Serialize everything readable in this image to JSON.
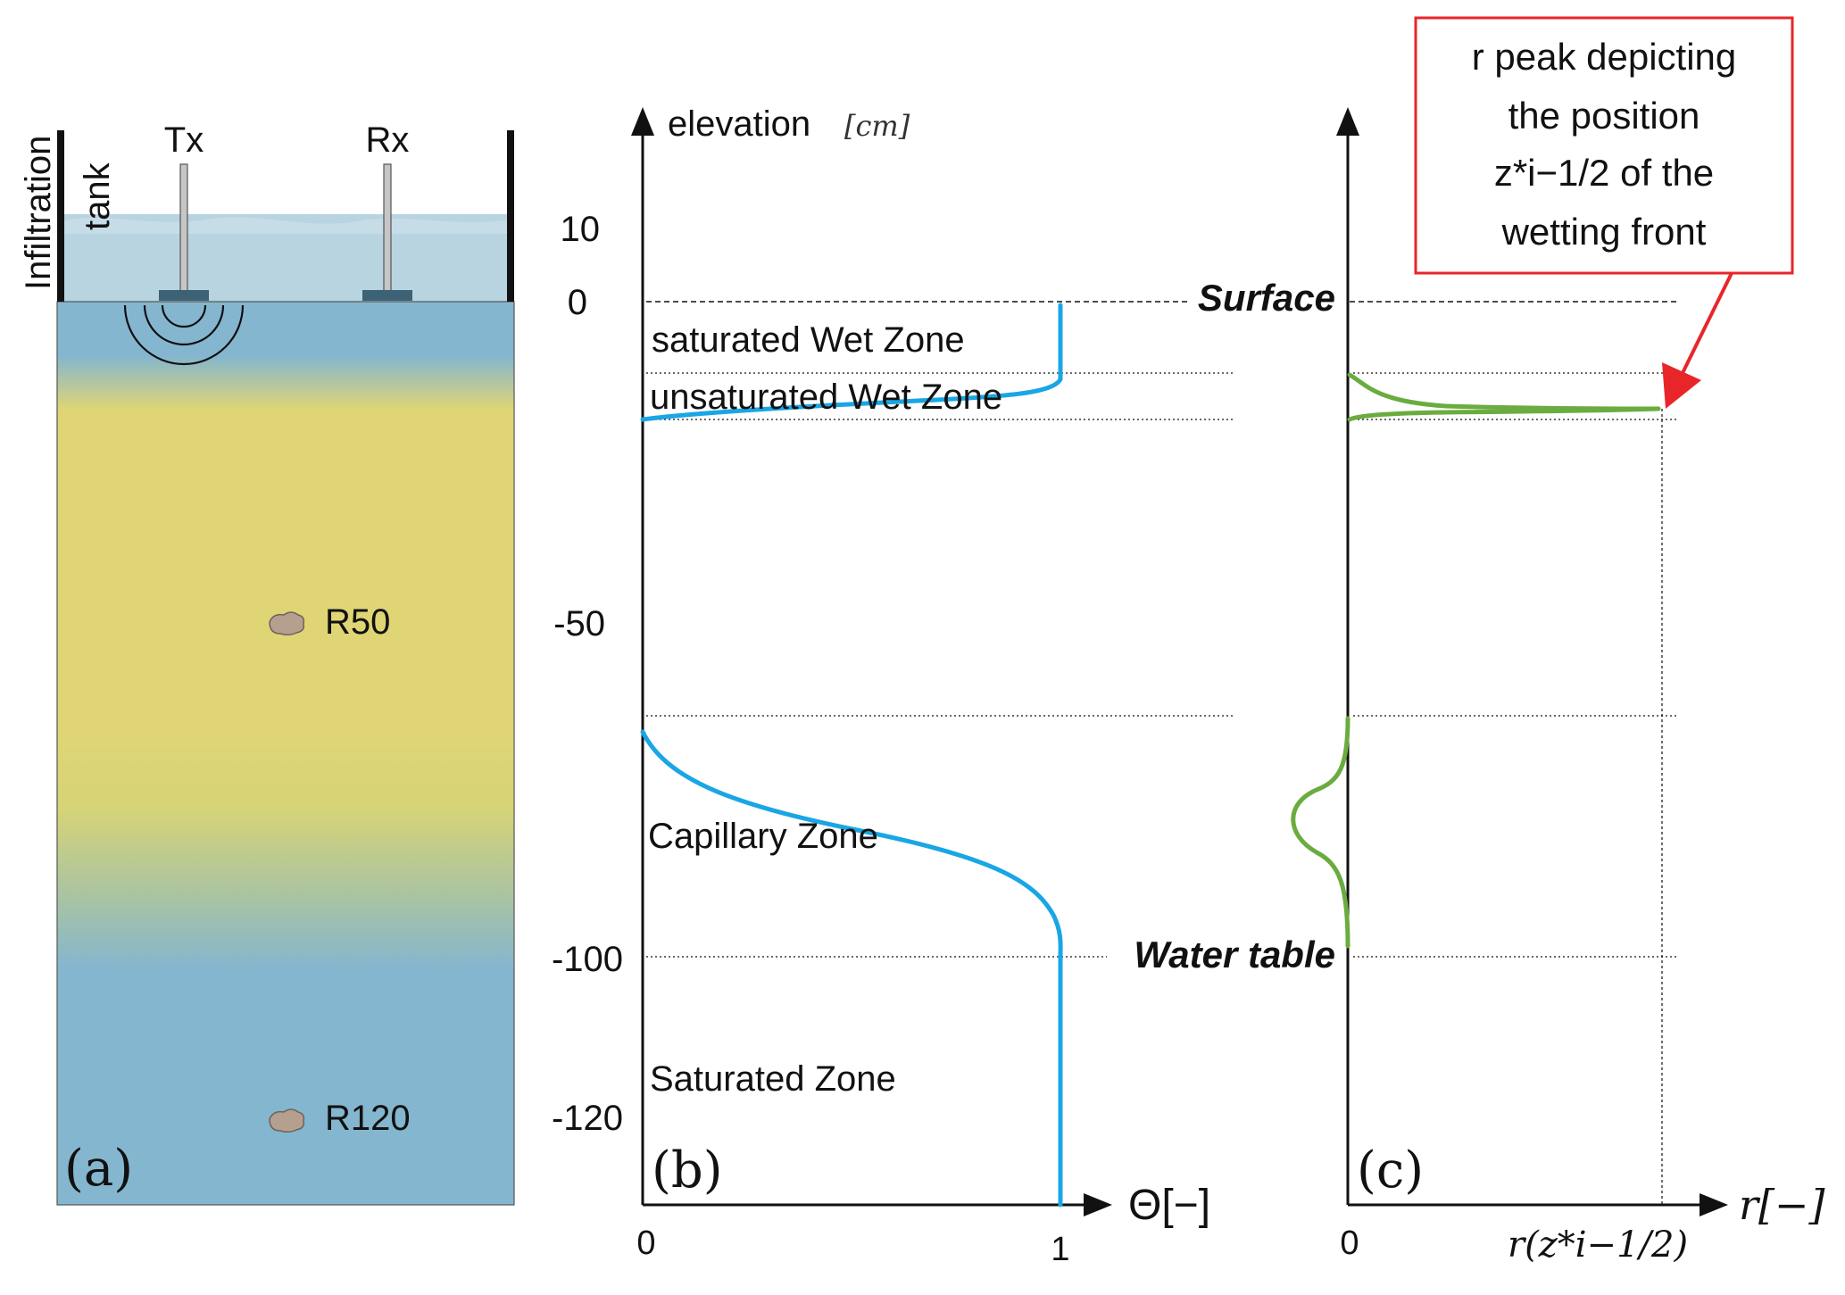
{
  "panel_a": {
    "tank_label_1": "Infiltration",
    "tank_label_2": "tank",
    "tx_label": "Tx",
    "rx_label": "Rx",
    "r50_label": "R50",
    "r120_label": "R120",
    "panel_label": "(a)",
    "colors": {
      "water": "#b8d4e0",
      "soil_wet": "#84b6cf",
      "soil_dry": "#dfd575",
      "rock": "#b59f8e"
    }
  },
  "axis": {
    "elevation_label": "elevation",
    "elevation_unit": "[cm]",
    "ticks": [
      "10",
      "0",
      "-50",
      "-100",
      "-120"
    ]
  },
  "panel_b": {
    "panel_label": "(b)",
    "x_axis_label": "Θ[−]",
    "x_tick_0": "0",
    "x_tick_1": "1",
    "zones": {
      "saturated_wet": "saturated Wet Zone",
      "unsaturated_wet": "unsaturated Wet Zone",
      "capillary": "Capillary Zone",
      "saturated": "Saturated Zone"
    },
    "surface_label": "Surface",
    "water_table_label": "Water table",
    "curve_color": "#1aa6e4"
  },
  "panel_c": {
    "panel_label": "(c)",
    "x_axis_label": "r[−]",
    "x_tick_0": "0",
    "x_tick_peak": "r(z*i−1/2)",
    "callout": {
      "line1": "r peak depicting",
      "line2": "the position",
      "line3": "z*i−1/2 of the",
      "line4": "wetting front"
    },
    "curve_color": "#6aac3f",
    "callout_color": "#e8262a"
  }
}
